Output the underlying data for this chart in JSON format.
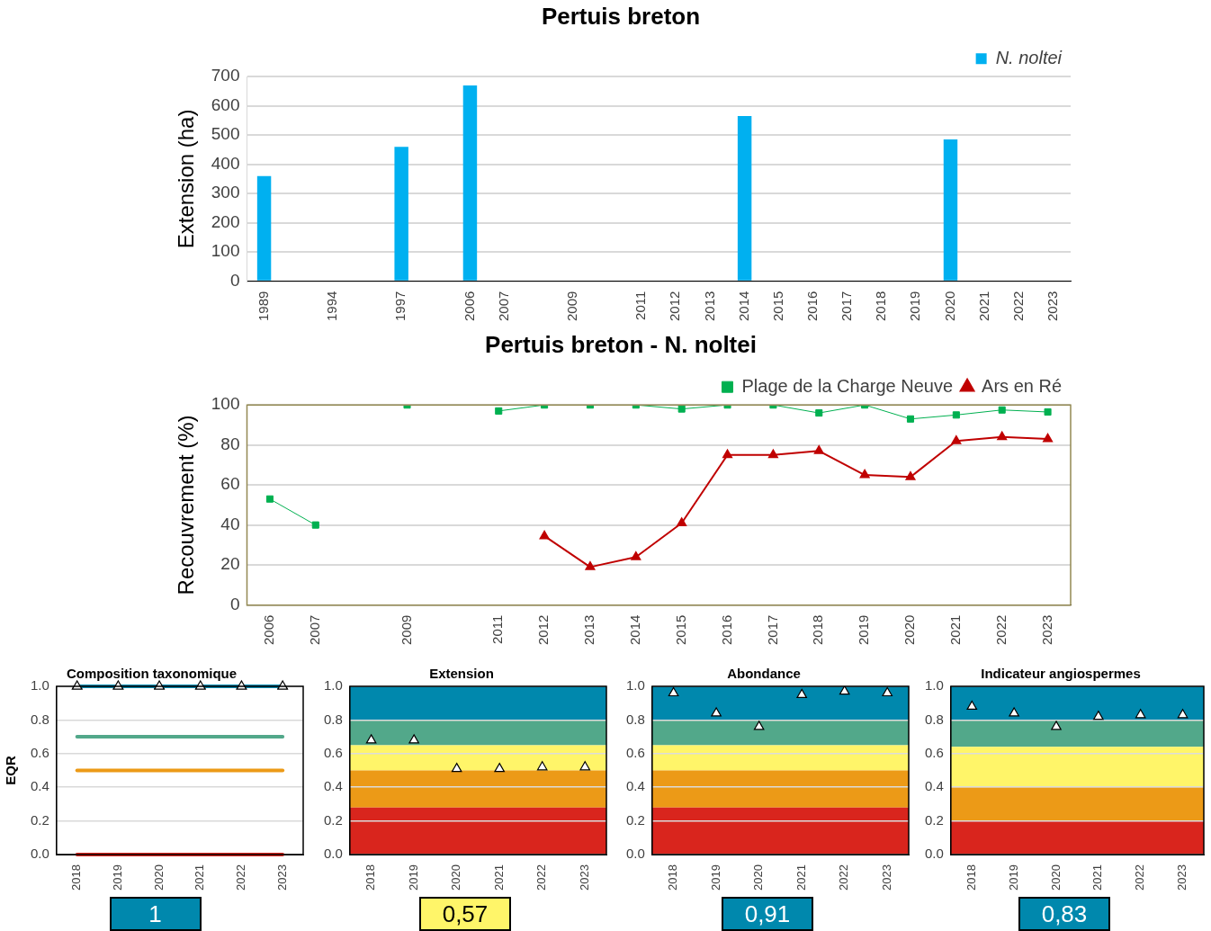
{
  "chart_data": [
    {
      "type": "bar",
      "title": "Pertuis breton",
      "ylabel": "Extension (ha)",
      "categories": [
        "1989",
        null,
        "1994",
        null,
        "1997",
        null,
        "2006",
        "2007",
        null,
        "2009",
        null,
        "2011",
        "2012",
        "2013",
        "2014",
        "2015",
        "2016",
        "2017",
        "2018",
        "2019",
        "2020",
        "2021",
        "2022",
        "2023"
      ],
      "series": [
        {
          "name": "N. noltei",
          "color": "#00b0f0",
          "values": [
            360,
            null,
            null,
            null,
            460,
            null,
            670,
            null,
            null,
            null,
            null,
            null,
            null,
            null,
            565,
            null,
            null,
            null,
            null,
            null,
            485,
            null,
            null,
            null
          ]
        }
      ],
      "ylim": [
        0,
        700
      ],
      "yticks": [
        0,
        100,
        200,
        300,
        400,
        500,
        600,
        700
      ],
      "grid": "y",
      "legend": "top right"
    },
    {
      "type": "line",
      "title": "Pertuis breton - N. noltei",
      "ylabel": "Recouvrement (%)",
      "categories": [
        "2006",
        "2007",
        null,
        "2009",
        null,
        "2011",
        "2012",
        "2013",
        "2014",
        "2015",
        "2016",
        "2017",
        "2018",
        "2019",
        "2020",
        "2021",
        "2022",
        "2023"
      ],
      "series": [
        {
          "name": "Plage de la Charge Neuve",
          "color": "#00b050",
          "marker": "square",
          "values": [
            53,
            40,
            null,
            100,
            null,
            97,
            100,
            100,
            100,
            98,
            100,
            100,
            96,
            100,
            93,
            95,
            97.5,
            96.5
          ]
        },
        {
          "name": "Ars en Ré",
          "color": "#c00000",
          "marker": "triangle",
          "values": [
            null,
            null,
            null,
            null,
            null,
            null,
            34.5,
            19,
            24,
            41,
            75,
            75,
            77,
            65,
            64,
            82,
            84,
            83
          ]
        }
      ],
      "ylim": [
        0,
        100
      ],
      "yticks": [
        0,
        20,
        40,
        60,
        80,
        100
      ],
      "grid": "y",
      "legend": "top right"
    },
    {
      "type": "scatter",
      "title": "Composition taxonomique",
      "ylabel": "EQR",
      "categories": [
        "2018",
        "2019",
        "2020",
        "2021",
        "2022",
        "2023"
      ],
      "series": [
        {
          "color": "#ffffff",
          "values": [
            1,
            1,
            1,
            1,
            1,
            1
          ]
        }
      ],
      "marker": "triangle",
      "ref_lines": [
        {
          "axis": "y",
          "value": 1,
          "color": "#0088ad"
        },
        {
          "axis": "y",
          "value": 0.7,
          "color": "#52a88a"
        },
        {
          "axis": "y",
          "value": 0.5,
          "color": "#ec9a17"
        },
        {
          "axis": "y",
          "value": 0,
          "color": "#d9251d"
        }
      ],
      "ylim": [
        0,
        1
      ],
      "yticks": [
        {
          "value": 0,
          "label": "0.0"
        },
        {
          "value": 0.2,
          "label": "0.2"
        },
        {
          "value": 0.4,
          "label": "0.4"
        },
        {
          "value": 0.6,
          "label": "0.6"
        },
        {
          "value": 0.8,
          "label": "0.8"
        },
        {
          "value": 1,
          "label": "1.0"
        }
      ],
      "grid": "y",
      "annotations": [
        "1"
      ]
    },
    {
      "type": "scatter",
      "title": "Extension",
      "categories": [
        "2018",
        "2019",
        "2020",
        "2021",
        "2022",
        "2023"
      ],
      "series": [
        {
          "color": "#ffffff",
          "values": [
            0.68,
            0.68,
            0.51,
            0.51,
            0.52,
            0.52
          ]
        }
      ],
      "marker": "triangle",
      "bands": [
        {
          "axis": "y",
          "from": 0.8,
          "to": 1,
          "color": "#0088ad"
        },
        {
          "axis": "y",
          "from": 0.65,
          "to": 0.8,
          "color": "#52a88a"
        },
        {
          "axis": "y",
          "from": 0.5,
          "to": 0.65,
          "color": "#fff569"
        },
        {
          "axis": "y",
          "from": 0.28,
          "to": 0.5,
          "color": "#ec9a17"
        },
        {
          "axis": "y",
          "from": 0,
          "to": 0.28,
          "color": "#d9251d"
        }
      ],
      "ylim": [
        0,
        1
      ],
      "yticks": [
        {
          "value": 0,
          "label": "0.0"
        },
        {
          "value": 0.2,
          "label": "0.2"
        },
        {
          "value": 0.4,
          "label": "0.4"
        },
        {
          "value": 0.6,
          "label": "0.6"
        },
        {
          "value": 0.8,
          "label": "0.8"
        },
        {
          "value": 1,
          "label": "1.0"
        }
      ],
      "grid": "y",
      "annotations": [
        "0,57"
      ]
    },
    {
      "type": "scatter",
      "title": "Abondance",
      "categories": [
        "2018",
        "2019",
        "2020",
        "2021",
        "2022",
        "2023"
      ],
      "series": [
        {
          "color": "#ffffff",
          "values": [
            0.96,
            0.84,
            0.76,
            0.95,
            0.97,
            0.96
          ]
        }
      ],
      "marker": "triangle",
      "bands": [
        {
          "axis": "y",
          "from": 0.8,
          "to": 1,
          "color": "#0088ad"
        },
        {
          "axis": "y",
          "from": 0.65,
          "to": 0.8,
          "color": "#52a88a"
        },
        {
          "axis": "y",
          "from": 0.5,
          "to": 0.65,
          "color": "#fff569"
        },
        {
          "axis": "y",
          "from": 0.28,
          "to": 0.5,
          "color": "#ec9a17"
        },
        {
          "axis": "y",
          "from": 0,
          "to": 0.28,
          "color": "#d9251d"
        }
      ],
      "ylim": [
        0,
        1
      ],
      "yticks": [
        {
          "value": 0,
          "label": "0.0"
        },
        {
          "value": 0.2,
          "label": "0.2"
        },
        {
          "value": 0.4,
          "label": "0.4"
        },
        {
          "value": 0.6,
          "label": "0.6"
        },
        {
          "value": 0.8,
          "label": "0.8"
        },
        {
          "value": 1,
          "label": "1.0"
        }
      ],
      "grid": "y",
      "annotations": [
        "0,91"
      ]
    },
    {
      "type": "scatter",
      "title": "Indicateur angiospermes",
      "categories": [
        "2018",
        "2019",
        "2020",
        "2021",
        "2022",
        "2023"
      ],
      "series": [
        {
          "color": "#ffffff",
          "values": [
            0.88,
            0.84,
            0.76,
            0.82,
            0.83,
            0.83
          ]
        }
      ],
      "marker": "triangle",
      "bands": [
        {
          "axis": "y",
          "from": 0.8,
          "to": 1,
          "color": "#0088ad"
        },
        {
          "axis": "y",
          "from": 0.64,
          "to": 0.8,
          "color": "#52a88a"
        },
        {
          "axis": "y",
          "from": 0.4,
          "to": 0.64,
          "color": "#fff569"
        },
        {
          "axis": "y",
          "from": 0.2,
          "to": 0.4,
          "color": "#ec9a17"
        },
        {
          "axis": "y",
          "from": 0,
          "to": 0.2,
          "color": "#d9251d"
        }
      ],
      "ylim": [
        0,
        1
      ],
      "yticks": [
        {
          "value": 0,
          "label": "0.0"
        },
        {
          "value": 0.2,
          "label": "0.2"
        },
        {
          "value": 0.4,
          "label": "0.4"
        },
        {
          "value": 0.6,
          "label": "0.6"
        },
        {
          "value": 0.8,
          "label": "0.8"
        },
        {
          "value": 1,
          "label": "1.0"
        }
      ],
      "grid": "y",
      "annotations": [
        "0,83"
      ]
    }
  ]
}
